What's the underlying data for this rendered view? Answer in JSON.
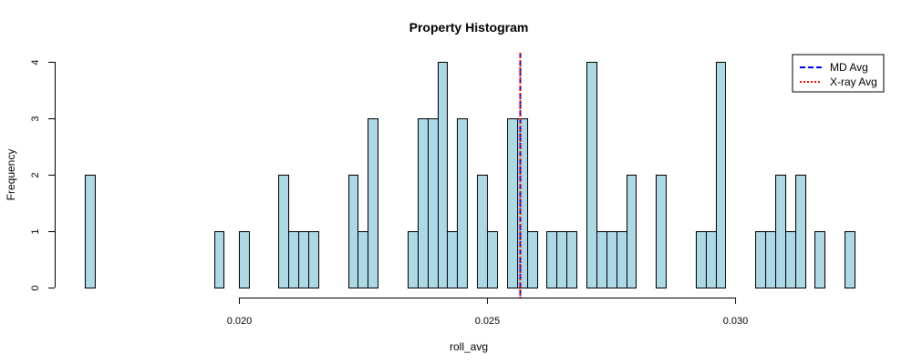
{
  "chart_data": {
    "type": "bar",
    "title": "Property Histogram",
    "xlabel": "roll_avg",
    "ylabel": "Frequency",
    "xlim": [
      0.0169,
      0.0324
    ],
    "ylim": [
      0,
      4
    ],
    "bin_width": 0.0002,
    "bar_color": "#ADD8E6",
    "x_ticks": [
      {
        "value": 0.02,
        "label": "0.020"
      },
      {
        "value": 0.025,
        "label": "0.025"
      },
      {
        "value": 0.03,
        "label": "0.030"
      }
    ],
    "y_ticks": [
      {
        "value": 0,
        "label": "0"
      },
      {
        "value": 1,
        "label": "1"
      },
      {
        "value": 2,
        "label": "2"
      },
      {
        "value": 3,
        "label": "3"
      },
      {
        "value": 4,
        "label": "4"
      }
    ],
    "bins": [
      {
        "start": 0.0169,
        "count": 2
      },
      {
        "start": 0.0195,
        "count": 1
      },
      {
        "start": 0.02,
        "count": 1
      },
      {
        "start": 0.0208,
        "count": 2
      },
      {
        "start": 0.021,
        "count": 1
      },
      {
        "start": 0.0212,
        "count": 1
      },
      {
        "start": 0.0214,
        "count": 1
      },
      {
        "start": 0.0222,
        "count": 2
      },
      {
        "start": 0.0224,
        "count": 1
      },
      {
        "start": 0.0226,
        "count": 3
      },
      {
        "start": 0.0234,
        "count": 1
      },
      {
        "start": 0.0236,
        "count": 3
      },
      {
        "start": 0.0238,
        "count": 3
      },
      {
        "start": 0.024,
        "count": 4
      },
      {
        "start": 0.0242,
        "count": 1
      },
      {
        "start": 0.0244,
        "count": 3
      },
      {
        "start": 0.0248,
        "count": 2
      },
      {
        "start": 0.025,
        "count": 1
      },
      {
        "start": 0.0254,
        "count": 3
      },
      {
        "start": 0.0256,
        "count": 3
      },
      {
        "start": 0.0258,
        "count": 1
      },
      {
        "start": 0.0262,
        "count": 1
      },
      {
        "start": 0.0264,
        "count": 1
      },
      {
        "start": 0.0266,
        "count": 1
      },
      {
        "start": 0.027,
        "count": 4
      },
      {
        "start": 0.0272,
        "count": 1
      },
      {
        "start": 0.0274,
        "count": 1
      },
      {
        "start": 0.0276,
        "count": 1
      },
      {
        "start": 0.0278,
        "count": 2
      },
      {
        "start": 0.0284,
        "count": 2
      },
      {
        "start": 0.0292,
        "count": 1
      },
      {
        "start": 0.0294,
        "count": 1
      },
      {
        "start": 0.0296,
        "count": 4
      },
      {
        "start": 0.0304,
        "count": 1
      },
      {
        "start": 0.0306,
        "count": 1
      },
      {
        "start": 0.0308,
        "count": 2
      },
      {
        "start": 0.031,
        "count": 1
      },
      {
        "start": 0.0312,
        "count": 2
      },
      {
        "start": 0.0316,
        "count": 1
      },
      {
        "start": 0.0322,
        "count": 1
      }
    ],
    "vlines": [
      {
        "name": "MD Avg",
        "x": 0.02567,
        "color": "#0000FF",
        "dash": "dashed"
      },
      {
        "name": "X-ray Avg",
        "x": 0.02567,
        "color": "#FF0000",
        "dash": "dotted"
      }
    ],
    "legend": {
      "position": "top-right",
      "entries": [
        {
          "label": "MD Avg",
          "color": "#0000FF",
          "dash": "dashed"
        },
        {
          "label": "X-ray Avg",
          "color": "#FF0000",
          "dash": "dotted"
        }
      ]
    }
  }
}
